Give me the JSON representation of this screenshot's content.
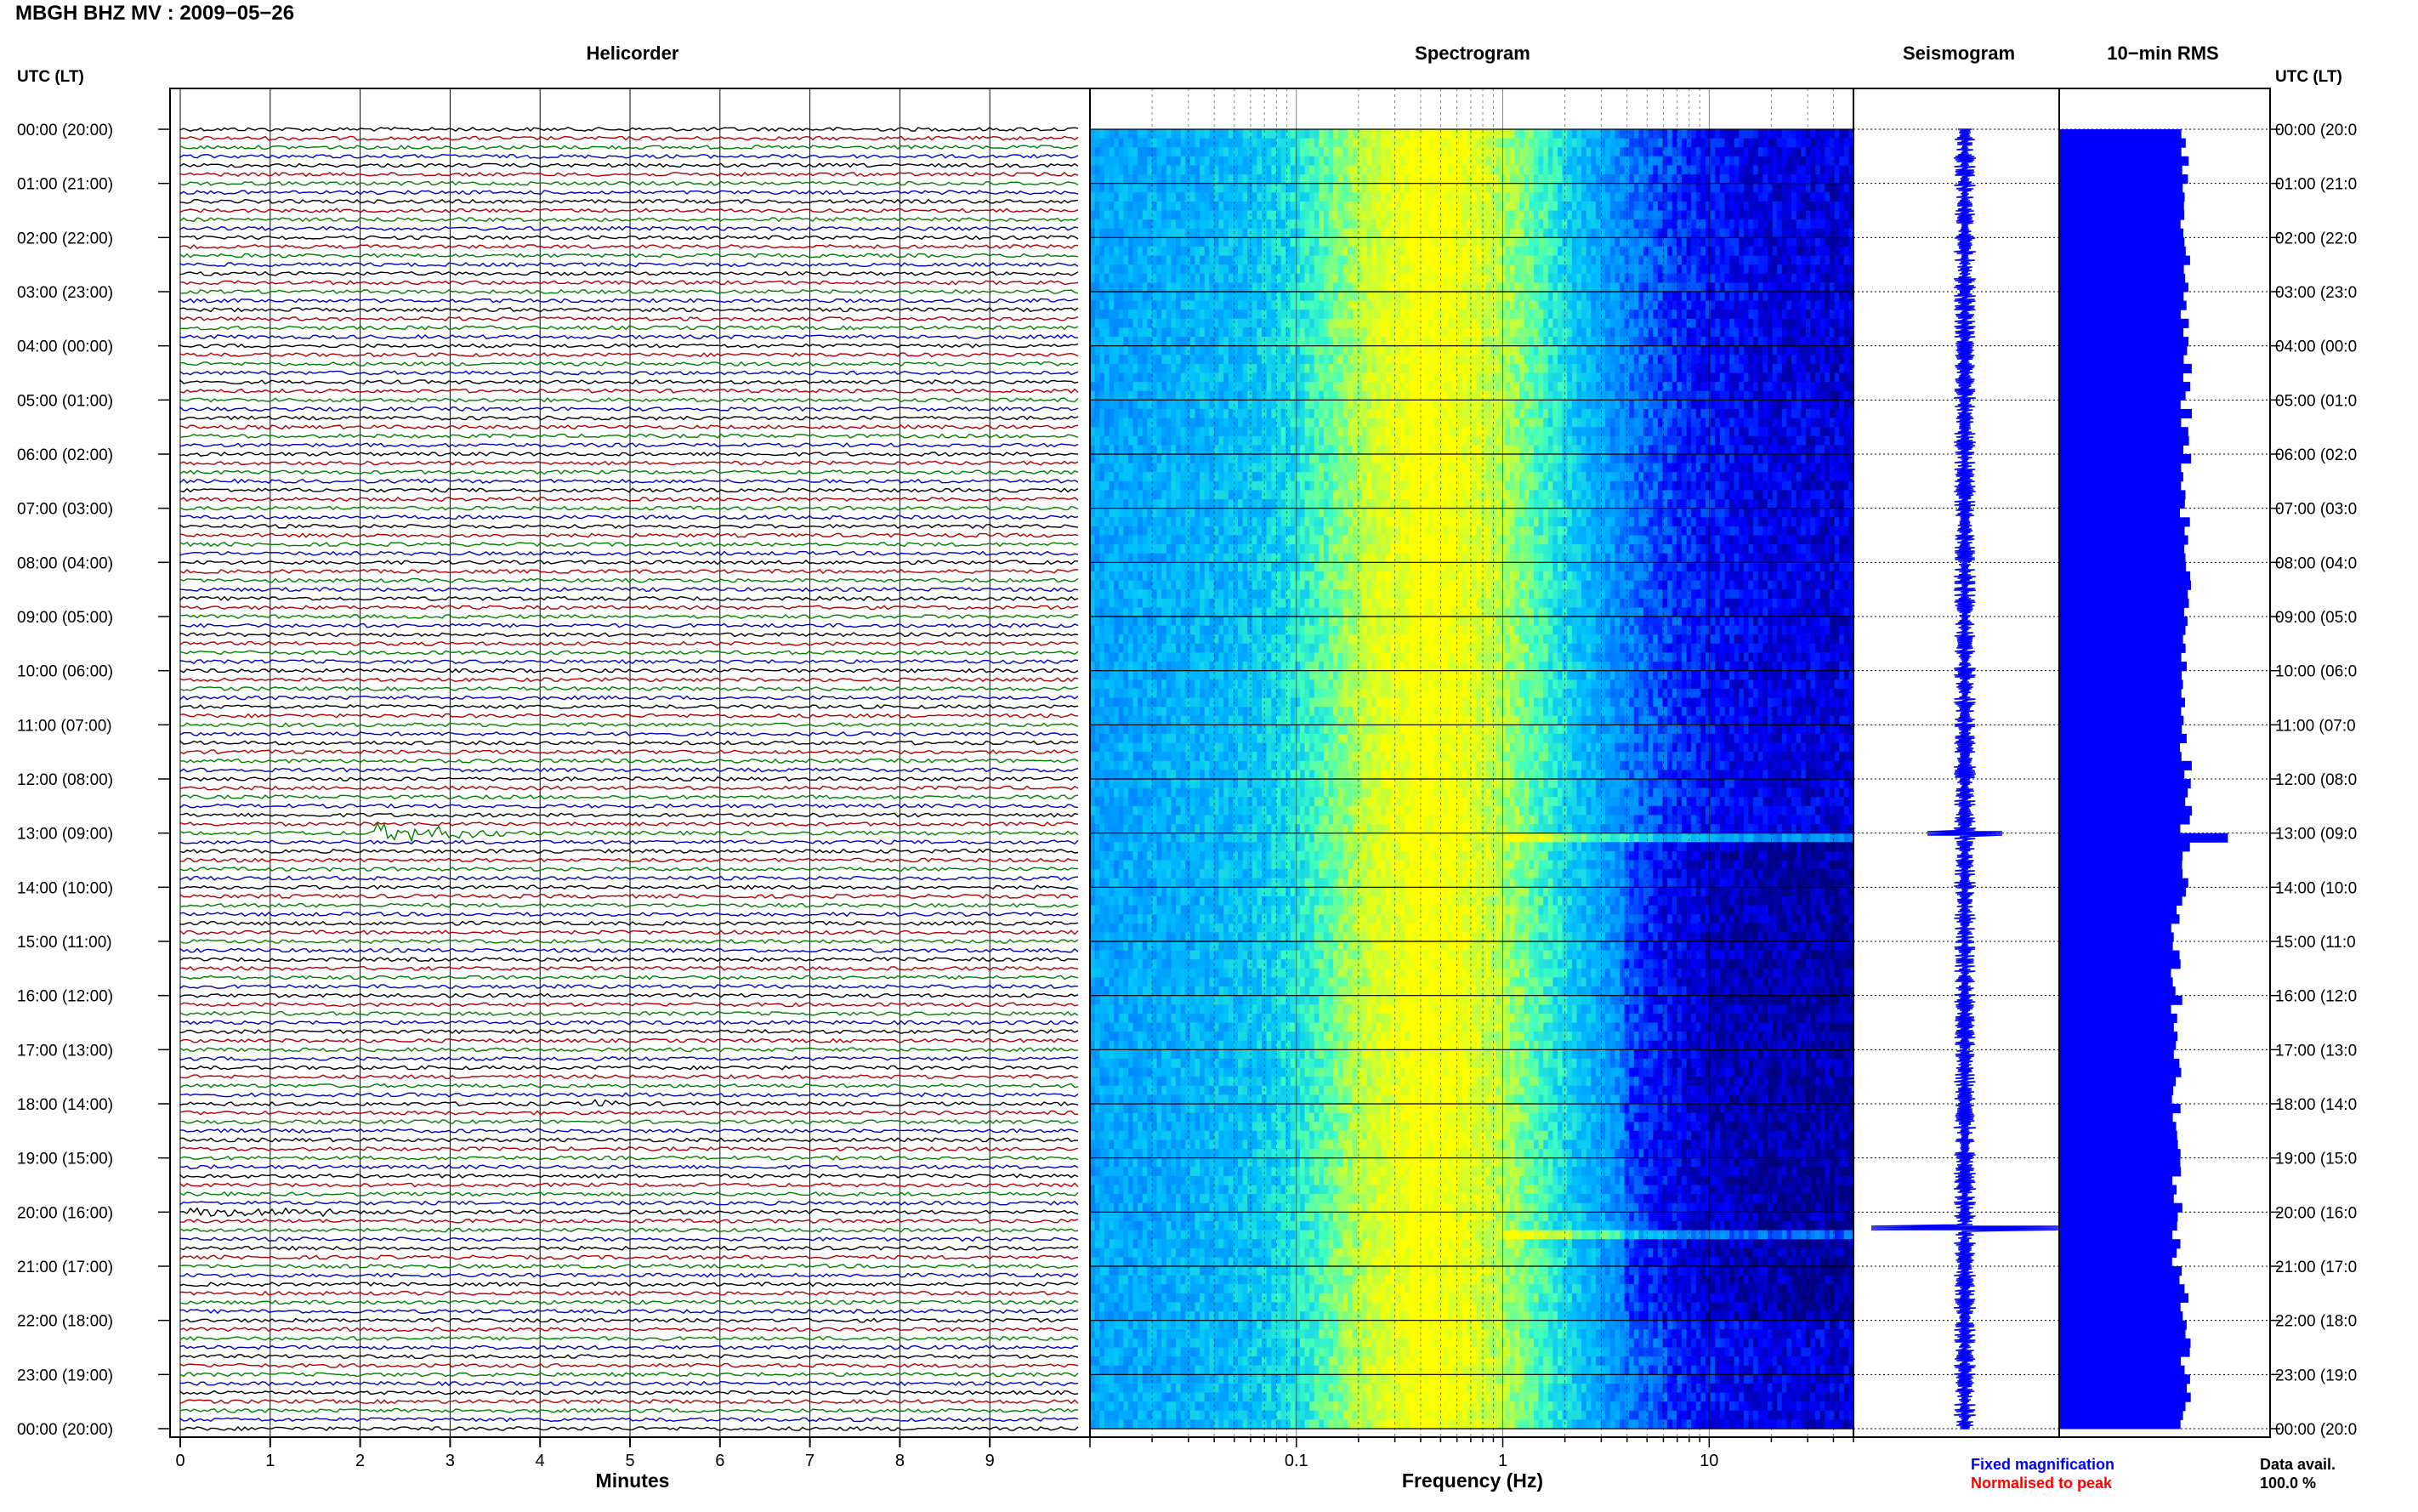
{
  "page_title": "MBGH BHZ MV : 2009−05−26",
  "panels": {
    "helicorder": "Helicorder",
    "spectrogram": "Spectrogram",
    "seismogram": "Seismogram",
    "rms": "10−min RMS"
  },
  "utc_label": "UTC (LT)",
  "legend": {
    "fixed": "Fixed magnification",
    "normalised": "Normalised to peak",
    "fixed_color": "#0000ff",
    "normalised_color": "#ff0000"
  },
  "data_avail": {
    "label": "Data avail.",
    "value": "100.0 %"
  },
  "chart_data": [
    {
      "type": "line",
      "panel": "Helicorder",
      "xlabel": "Minutes",
      "x_ticks": [
        0,
        1,
        2,
        3,
        4,
        5,
        6,
        7,
        8,
        9
      ],
      "xlim": [
        0,
        10
      ],
      "time_labels": [
        "00:00 (20:00)",
        "01:00 (21:00)",
        "02:00 (22:00)",
        "03:00 (23:00)",
        "04:00 (00:00)",
        "05:00 (01:00)",
        "06:00 (02:00)",
        "07:00 (03:00)",
        "08:00 (04:00)",
        "09:00 (05:00)",
        "10:00 (06:00)",
        "11:00 (07:00)",
        "12:00 (08:00)",
        "13:00 (09:00)",
        "14:00 (10:00)",
        "15:00 (11:00)",
        "16:00 (12:00)",
        "17:00 (13:00)",
        "18:00 (14:00)",
        "19:00 (15:00)",
        "20:00 (16:00)",
        "21:00 (17:00)",
        "22:00 (18:00)",
        "23:00 (19:00)",
        "00:00 (20:00)"
      ],
      "right_time_labels": [
        "00:00 (20:0",
        "01:00 (21:0",
        "02:00 (22:0",
        "03:00 (23:0",
        "04:00 (00:0",
        "05:00 (01:0",
        "06:00 (02:0",
        "07:00 (03:0",
        "08:00 (04:0",
        "09:00 (05:0",
        "10:00 (06:0",
        "11:00 (07:0",
        "12:00 (08:0",
        "13:00 (09:0",
        "14:00 (10:0",
        "15:00 (11:0",
        "16:00 (12:0",
        "17:00 (13:0",
        "18:00 (14:0",
        "19:00 (15:0",
        "20:00 (16:0",
        "21:00 (17:0",
        "22:00 (18:0",
        "23:00 (19:0",
        "00:00 (20:0"
      ],
      "line_colors": [
        "#000000",
        "#b00000",
        "#008000",
        "#0000c0"
      ],
      "lines_per_hour": 6,
      "events": [
        {
          "hour": 13,
          "minute_start": 2.15,
          "minute_end": 3.6,
          "amplitude": "large"
        },
        {
          "hour": 20,
          "minute_start": 0.1,
          "minute_end": 1.7,
          "amplitude": "small"
        },
        {
          "hour": 20,
          "minute_start": 7.0,
          "minute_end": 7.2,
          "amplitude": "small"
        },
        {
          "hour": 18,
          "minute_start": 4.6,
          "minute_end": 4.9,
          "amplitude": "small"
        }
      ]
    },
    {
      "type": "heatmap",
      "panel": "Spectrogram",
      "xlabel": "Frequency (Hz)",
      "xscale": "log",
      "xlim": [
        0.01,
        50
      ],
      "x_tick_labels": [
        "0.1",
        "1",
        "10"
      ],
      "x_tick_values": [
        0.1,
        1,
        10
      ],
      "colormap": [
        "#000080",
        "#0000ff",
        "#0080ff",
        "#00c0ff",
        "#40ffc0",
        "#c0ff40",
        "#ffff00"
      ],
      "peak_band_hz": [
        0.25,
        0.5
      ],
      "event_hours": [
        13,
        20.3
      ]
    },
    {
      "type": "line",
      "panel": "Seismogram",
      "series": [
        {
          "color": "#0000ff"
        }
      ],
      "event_hours": [
        13.0,
        20.3
      ],
      "event_amplitudes": [
        0.4,
        1.0
      ]
    },
    {
      "type": "bar",
      "panel": "10-min RMS",
      "color": "#0000ff",
      "baseline_level": 0.6,
      "peak_hour": 13.0,
      "peak_level": 0.8
    }
  ]
}
